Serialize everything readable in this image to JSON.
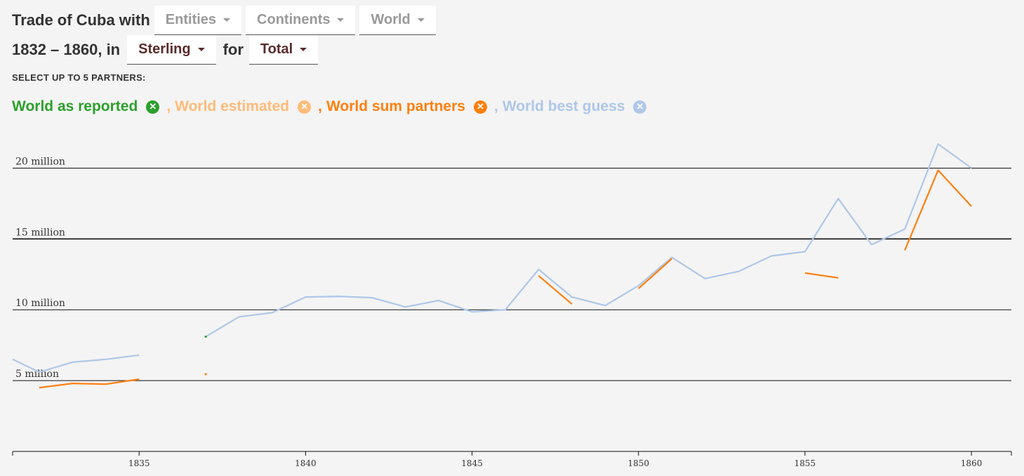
{
  "header": {
    "title": "Trade of Cuba with",
    "period": "1832 – 1860, in",
    "for_label": "for",
    "dropdowns": {
      "entities": "Entities",
      "continents": "Continents",
      "world": "World",
      "currency": "Sterling",
      "flow": "Total"
    }
  },
  "select_label": "SELECT UP TO 5 PARTNERS:",
  "partners": [
    {
      "name": "World as reported",
      "color": "#2ca02c",
      "icon": "close-circle-icon"
    },
    {
      "name": "World estimated",
      "color": "#ffbb78",
      "icon": "close-circle-icon"
    },
    {
      "name": "World sum partners",
      "color": "#ff7f0e",
      "icon": "close-circle-icon"
    },
    {
      "name": "World best guess",
      "color": "#aec7e8",
      "icon": "close-circle-icon"
    }
  ],
  "separator": ",",
  "chart_data": {
    "type": "line",
    "xlim": [
      1831.2,
      1861.2
    ],
    "ylim": [
      0,
      22500000
    ],
    "y_ticks": [
      {
        "value": 5000000,
        "label": "5 million"
      },
      {
        "value": 10000000,
        "label": "10 million"
      },
      {
        "value": 15000000,
        "label": "15 million"
      },
      {
        "value": 20000000,
        "label": "20 million"
      }
    ],
    "x_ticks": [
      1835,
      1840,
      1845,
      1850,
      1855,
      1860
    ],
    "series": [
      {
        "name": "World best guess",
        "color": "#aec7e8",
        "segments": [
          [
            [
              1831.2,
              6500000
            ],
            [
              1832,
              5600000
            ],
            [
              1833,
              6300000
            ],
            [
              1834,
              6500000
            ],
            [
              1835,
              6800000
            ]
          ],
          [
            [
              1837,
              8100000
            ],
            [
              1838,
              9500000
            ],
            [
              1839,
              9800000
            ],
            [
              1840,
              10900000
            ],
            [
              1841,
              10950000
            ],
            [
              1842,
              10850000
            ],
            [
              1843,
              10200000
            ],
            [
              1844,
              10650000
            ],
            [
              1845,
              9850000
            ],
            [
              1846,
              10000000
            ],
            [
              1847,
              12850000
            ],
            [
              1848,
              10900000
            ],
            [
              1849,
              10300000
            ],
            [
              1850,
              11700000
            ],
            [
              1851,
              13700000
            ],
            [
              1852,
              12200000
            ],
            [
              1853,
              12700000
            ],
            [
              1854,
              13800000
            ],
            [
              1855,
              14100000
            ],
            [
              1856,
              17850000
            ],
            [
              1857,
              14600000
            ],
            [
              1858,
              15700000
            ],
            [
              1859,
              21700000
            ],
            [
              1860,
              20000000
            ]
          ]
        ]
      },
      {
        "name": "World sum partners",
        "color": "#ff7f0e",
        "segments": [
          [
            [
              1832,
              4500000
            ],
            [
              1833,
              4800000
            ],
            [
              1834,
              4750000
            ],
            [
              1835,
              5100000
            ]
          ],
          [
            [
              1837,
              5450000
            ]
          ],
          [
            [
              1847,
              12400000
            ],
            [
              1848,
              10400000
            ]
          ],
          [
            [
              1850,
              11500000
            ],
            [
              1851,
              13600000
            ]
          ],
          [
            [
              1855,
              12600000
            ],
            [
              1856,
              12250000
            ]
          ],
          [
            [
              1858,
              14200000
            ],
            [
              1859,
              19850000
            ],
            [
              1860,
              17300000
            ]
          ]
        ]
      },
      {
        "name": "World as reported",
        "color": "#2ca02c",
        "segments": [
          [
            [
              1837,
              8100000
            ]
          ]
        ]
      }
    ]
  }
}
